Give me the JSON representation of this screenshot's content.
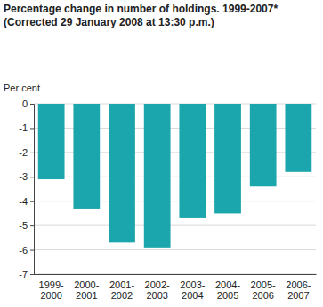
{
  "chart_data": {
    "type": "bar",
    "title": "Percentage change in number of holdings. 1999-2007*",
    "subtitle": "(Corrected 29 January 2008 at 13:30 p.m.)",
    "y_label": "Per cent",
    "categories": [
      "1999-2000",
      "2000-2001",
      "2001-2002",
      "2002-2003",
      "2003-2004",
      "2004-2005",
      "2005-2006",
      "2006-2007"
    ],
    "values": [
      -3.1,
      -4.3,
      -5.7,
      -5.9,
      -4.7,
      -4.5,
      -3.4,
      -2.8
    ],
    "color": "#1ba5ad",
    "ylim": [
      -7,
      0
    ],
    "yticks": [
      0,
      -1,
      -2,
      -3,
      -4,
      -5,
      -6,
      -7
    ],
    "grid": true
  }
}
